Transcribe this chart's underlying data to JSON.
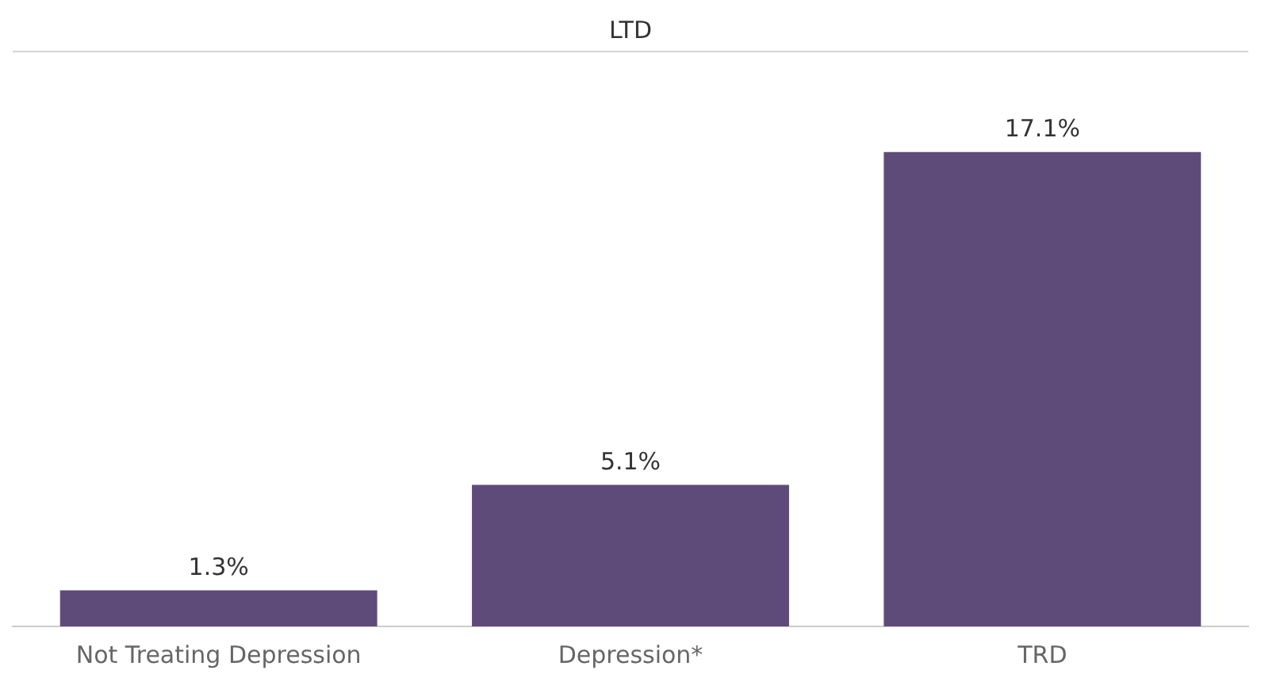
{
  "chart_data": {
    "type": "bar",
    "title": "LTD",
    "categories": [
      "Not Treating Depression",
      "Depression*",
      "TRD"
    ],
    "values": [
      1.3,
      5.1,
      17.1
    ],
    "value_labels": [
      "1.3%",
      "5.1%",
      "17.1%"
    ],
    "color": "#5f4b7a"
  }
}
